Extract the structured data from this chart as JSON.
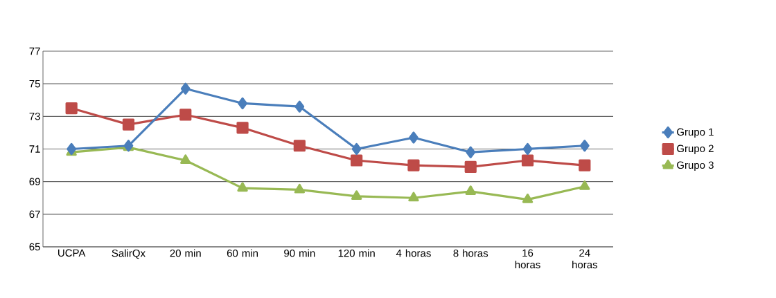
{
  "chart_data": {
    "type": "line",
    "categories": [
      "UCPA",
      "SalirQx",
      "20 min",
      "60 min",
      "90 min",
      "120 min",
      "4 horas",
      "8 horas",
      "16 horas",
      "24 horas"
    ],
    "series": [
      {
        "name": "Grupo 1",
        "color": "#4a7ebb",
        "marker": "diamond",
        "values": [
          71.0,
          71.2,
          74.7,
          73.8,
          73.6,
          71.0,
          71.7,
          70.8,
          71.0,
          71.2
        ]
      },
      {
        "name": "Grupo 2",
        "color": "#be4b48",
        "marker": "square",
        "values": [
          73.5,
          72.5,
          73.1,
          72.3,
          71.2,
          70.3,
          70.0,
          69.9,
          70.3,
          70.0
        ]
      },
      {
        "name": "Grupo 3",
        "color": "#98b954",
        "marker": "triangle",
        "values": [
          70.8,
          71.1,
          70.3,
          68.6,
          68.5,
          68.1,
          68.0,
          68.4,
          67.9,
          68.7
        ]
      }
    ],
    "ylim": [
      65,
      77
    ],
    "yticks": [
      65,
      67,
      69,
      71,
      73,
      75,
      77
    ],
    "grid": "y",
    "legend": "right",
    "line_style": "solid"
  }
}
